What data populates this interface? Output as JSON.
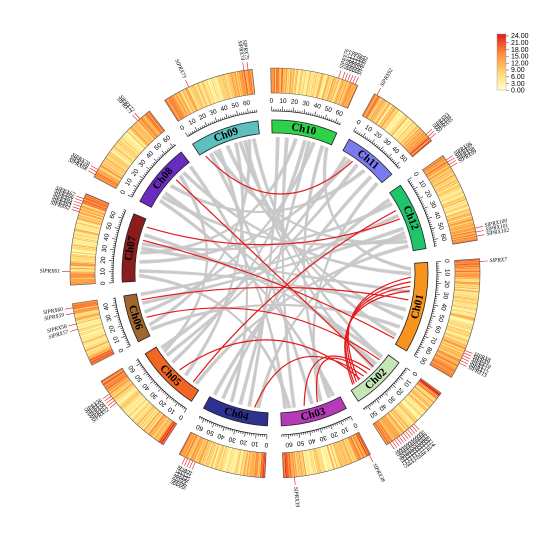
{
  "diagram": {
    "chromosomes": [
      {
        "id": "Ch01",
        "label": "Ch01",
        "length": 90,
        "color": "#f7941d",
        "tickStep": 10
      },
      {
        "id": "Ch02",
        "label": "Ch02",
        "length": 55,
        "color": "#c5e6b5",
        "tickStep": 10
      },
      {
        "id": "Ch03",
        "label": "Ch03",
        "length": 66,
        "color": "#b43ab8",
        "tickStep": 10
      },
      {
        "id": "Ch04",
        "label": "Ch04",
        "length": 65,
        "color": "#2e3192",
        "tickStep": 10
      },
      {
        "id": "Ch05",
        "label": "Ch05",
        "length": 65,
        "color": "#f26522",
        "tickStep": 10
      },
      {
        "id": "Ch06",
        "label": "Ch06",
        "length": 47,
        "color": "#a0662d",
        "tickStep": 10
      },
      {
        "id": "Ch07",
        "label": "Ch07",
        "length": 68,
        "color": "#8b1d1d",
        "tickStep": 10
      },
      {
        "id": "Ch08",
        "label": "Ch08",
        "length": 63,
        "color": "#6a2cbf",
        "tickStep": 10
      },
      {
        "id": "Ch09",
        "label": "Ch09",
        "length": 68,
        "color": "#5bc0be",
        "tickStep": 10
      },
      {
        "id": "Ch10",
        "label": "Ch10",
        "length": 65,
        "color": "#2ed14a",
        "tickStep": 10
      },
      {
        "id": "Ch11",
        "label": "Ch11",
        "length": 54,
        "color": "#7b7bf0",
        "tickStep": 10
      },
      {
        "id": "Ch12",
        "label": "Ch12",
        "length": 67,
        "color": "#1fc46b",
        "tickStep": 10
      }
    ],
    "legend": {
      "values": [
        "24.00",
        "21.00",
        "18.00",
        "15.00",
        "12.00",
        "9.00",
        "6.00",
        "3.00",
        "0.00"
      ],
      "colors": [
        "#e31a1c",
        "#f03b20",
        "#fd8d3c",
        "#feb24c",
        "#fed976",
        "#ffeda0"
      ]
    },
    "genes": [
      {
        "chr": "Ch01",
        "pos": 2,
        "label": "SlPRX7"
      },
      {
        "chr": "Ch01",
        "pos": 68,
        "label": "SlPRX8"
      },
      {
        "chr": "Ch01",
        "pos": 70,
        "label": "SlPRX9"
      },
      {
        "chr": "Ch01",
        "pos": 72,
        "label": "SlPRX10"
      },
      {
        "chr": "Ch01",
        "pos": 74,
        "label": "SlPRX11"
      },
      {
        "chr": "Ch01",
        "pos": 76,
        "label": "SlPRX12"
      },
      {
        "chr": "Ch01",
        "pos": 78,
        "label": "SlPRX13"
      },
      {
        "chr": "Ch02",
        "pos": 30,
        "label": "SlPRX14"
      },
      {
        "chr": "Ch02",
        "pos": 32,
        "label": "SlPRX15"
      },
      {
        "chr": "Ch02",
        "pos": 34,
        "label": "SlPRX16"
      },
      {
        "chr": "Ch02",
        "pos": 36,
        "label": "SlPRX17"
      },
      {
        "chr": "Ch02",
        "pos": 38,
        "label": "SlPRX18"
      },
      {
        "chr": "Ch02",
        "pos": 40,
        "label": "SlPRX19"
      },
      {
        "chr": "Ch02",
        "pos": 42,
        "label": "SlPRX20"
      },
      {
        "chr": "Ch02",
        "pos": 44,
        "label": "SlPRX21"
      },
      {
        "chr": "Ch02",
        "pos": 46,
        "label": "SlPRX22"
      },
      {
        "chr": "Ch02",
        "pos": 48,
        "label": "SlPRX23"
      },
      {
        "chr": "Ch02",
        "pos": 50,
        "label": "SlPRX24"
      },
      {
        "chr": "Ch02",
        "pos": 52,
        "label": "SlPRX25"
      },
      {
        "chr": "Ch03",
        "pos": 1,
        "label": "SlPRX38"
      },
      {
        "chr": "Ch03",
        "pos": 58,
        "label": "SlPRX39"
      },
      {
        "chr": "Ch04",
        "pos": 52,
        "label": "SlPRX44"
      },
      {
        "chr": "Ch04",
        "pos": 54,
        "label": "SlPRX45"
      },
      {
        "chr": "Ch04",
        "pos": 56,
        "label": "SlPRX46"
      },
      {
        "chr": "Ch04",
        "pos": 58,
        "label": "SlPRX47"
      },
      {
        "chr": "Ch04",
        "pos": 60,
        "label": "SlPRX48"
      },
      {
        "chr": "Ch05",
        "pos": 46,
        "label": "SlPRX52"
      },
      {
        "chr": "Ch05",
        "pos": 48,
        "label": "SlPRX53"
      },
      {
        "chr": "Ch05",
        "pos": 50,
        "label": "SlPRX54"
      },
      {
        "chr": "Ch05",
        "pos": 52,
        "label": "SlPRX55"
      },
      {
        "chr": "Ch05",
        "pos": 54,
        "label": "SlPRX56"
      },
      {
        "chr": "Ch06",
        "pos": 28,
        "label": "SlPRX57"
      },
      {
        "chr": "Ch06",
        "pos": 32,
        "label": "SlPRX58"
      },
      {
        "chr": "Ch06",
        "pos": 40,
        "label": "SlPRX59"
      },
      {
        "chr": "Ch06",
        "pos": 44,
        "label": "SlPRX60"
      },
      {
        "chr": "Ch07",
        "pos": 10,
        "label": "SlPRX61"
      },
      {
        "chr": "Ch07",
        "pos": 54,
        "label": "SlPRX62"
      },
      {
        "chr": "Ch07",
        "pos": 56,
        "label": "SlPRX63"
      },
      {
        "chr": "Ch07",
        "pos": 58,
        "label": "SlPRX64"
      },
      {
        "chr": "Ch07",
        "pos": 60,
        "label": "SlPRX65"
      },
      {
        "chr": "Ch07",
        "pos": 62,
        "label": "SlPRX66"
      },
      {
        "chr": "Ch07",
        "pos": 64,
        "label": "SlPRX67"
      },
      {
        "chr": "Ch08",
        "pos": 2,
        "label": "SlPRX68"
      },
      {
        "chr": "Ch08",
        "pos": 4,
        "label": "SlPRX69"
      },
      {
        "chr": "Ch08",
        "pos": 6,
        "label": "SlPRX70"
      },
      {
        "chr": "Ch08",
        "pos": 52,
        "label": "SlPRX71"
      },
      {
        "chr": "Ch08",
        "pos": 54,
        "label": "SlPRX72"
      },
      {
        "chr": "Ch09",
        "pos": 20,
        "label": "SlPRX73"
      },
      {
        "chr": "Ch09",
        "pos": 62,
        "label": "SlPRX74"
      },
      {
        "chr": "Ch09",
        "pos": 65,
        "label": "SlPRX75"
      },
      {
        "chr": "Ch10",
        "pos": 50,
        "label": "SlPRX76"
      },
      {
        "chr": "Ch10",
        "pos": 53,
        "label": "SlPRX77"
      },
      {
        "chr": "Ch10",
        "pos": 55,
        "label": "SlPRX78"
      },
      {
        "chr": "Ch10",
        "pos": 57,
        "label": "SlPRX79"
      },
      {
        "chr": "Ch10",
        "pos": 59,
        "label": "SlPRX80"
      },
      {
        "chr": "Ch10",
        "pos": 61,
        "label": "SlPRX81"
      },
      {
        "chr": "Ch10",
        "pos": 63,
        "label": "SlPRX82"
      },
      {
        "chr": "Ch11",
        "pos": 2,
        "label": "SlPRX92"
      },
      {
        "chr": "Ch11",
        "pos": 48,
        "label": "SlPRX93"
      },
      {
        "chr": "Ch11",
        "pos": 50,
        "label": "SlPRX94"
      },
      {
        "chr": "Ch11",
        "pos": 52,
        "label": "SlPRX95"
      },
      {
        "chr": "Ch12",
        "pos": 4,
        "label": "SlPRX96"
      },
      {
        "chr": "Ch12",
        "pos": 6,
        "label": "SlPRX97"
      },
      {
        "chr": "Ch12",
        "pos": 8,
        "label": "SlPRX98"
      },
      {
        "chr": "Ch12",
        "pos": 10,
        "label": "SlPRX99"
      },
      {
        "chr": "Ch12",
        "pos": 58,
        "label": "SlPRX100"
      },
      {
        "chr": "Ch12",
        "pos": 61,
        "label": "SlPRX101"
      },
      {
        "chr": "Ch12",
        "pos": 64,
        "label": "SlPRX102"
      }
    ],
    "segmental_links": [
      [
        "Ch09",
        5,
        "Ch11",
        15
      ],
      [
        "Ch07",
        60,
        "Ch12",
        30
      ],
      [
        "Ch07",
        45,
        "Ch01",
        85
      ],
      [
        "Ch08",
        40,
        "Ch02",
        20
      ],
      [
        "Ch06",
        40,
        "Ch01",
        40
      ],
      [
        "Ch06",
        20,
        "Ch02",
        10
      ],
      [
        "Ch05",
        10,
        "Ch12",
        20
      ],
      [
        "Ch05",
        30,
        "Ch02",
        40
      ],
      [
        "Ch04",
        15,
        "Ch02",
        35
      ],
      [
        "Ch03",
        25,
        "Ch02",
        30
      ],
      [
        "Ch03",
        40,
        "Ch02",
        25
      ],
      [
        "Ch01",
        20,
        "Ch02",
        45
      ],
      [
        "Ch01",
        25,
        "Ch02",
        48
      ],
      [
        "Ch01",
        30,
        "Ch02",
        50
      ],
      [
        "Ch01",
        15,
        "Ch02",
        42
      ]
    ],
    "background_links": [
      [
        "Ch09",
        10,
        "Ch03",
        30
      ],
      [
        "Ch09",
        20,
        "Ch04",
        40
      ],
      [
        "Ch09",
        30,
        "Ch01",
        60
      ],
      [
        "Ch09",
        40,
        "Ch05",
        20
      ],
      [
        "Ch09",
        50,
        "Ch02",
        20
      ],
      [
        "Ch09",
        55,
        "Ch06",
        10
      ],
      [
        "Ch10",
        5,
        "Ch04",
        20
      ],
      [
        "Ch10",
        15,
        "Ch03",
        50
      ],
      [
        "Ch10",
        25,
        "Ch07",
        30
      ],
      [
        "Ch10",
        35,
        "Ch05",
        40
      ],
      [
        "Ch10",
        45,
        "Ch06",
        25
      ],
      [
        "Ch10",
        55,
        "Ch03",
        10
      ],
      [
        "Ch11",
        10,
        "Ch07",
        20
      ],
      [
        "Ch11",
        20,
        "Ch05",
        50
      ],
      [
        "Ch11",
        30,
        "Ch08",
        30
      ],
      [
        "Ch11",
        40,
        "Ch04",
        50
      ],
      [
        "Ch12",
        10,
        "Ch07",
        40
      ],
      [
        "Ch12",
        40,
        "Ch06",
        35
      ],
      [
        "Ch12",
        50,
        "Ch08",
        15
      ],
      [
        "Ch12",
        60,
        "Ch05",
        5
      ],
      [
        "Ch01",
        10,
        "Ch08",
        50
      ],
      [
        "Ch01",
        50,
        "Ch07",
        10
      ],
      [
        "Ch01",
        70,
        "Ch06",
        5
      ],
      [
        "Ch01",
        80,
        "Ch09",
        45
      ],
      [
        "Ch02",
        5,
        "Ch07",
        50
      ],
      [
        "Ch02",
        15,
        "Ch08",
        20
      ],
      [
        "Ch03",
        5,
        "Ch08",
        10
      ],
      [
        "Ch03",
        55,
        "Ch07",
        5
      ],
      [
        "Ch04",
        30,
        "Ch10",
        40
      ],
      [
        "Ch04",
        60,
        "Ch12",
        5
      ],
      [
        "Ch05",
        60,
        "Ch11",
        5
      ],
      [
        "Ch06",
        45,
        "Ch12",
        25
      ],
      [
        "Ch08",
        60,
        "Ch03",
        60
      ],
      [
        "Ch09",
        60,
        "Ch02",
        5
      ],
      [
        "Ch10",
        60,
        "Ch01",
        5
      ],
      [
        "Ch11",
        50,
        "Ch03",
        20
      ],
      [
        "Ch12",
        45,
        "Ch04",
        10
      ],
      [
        "Ch07",
        35,
        "Ch01",
        30
      ],
      [
        "Ch08",
        45,
        "Ch05",
        55
      ],
      [
        "Ch09",
        15,
        "Ch12",
        55
      ]
    ]
  }
}
